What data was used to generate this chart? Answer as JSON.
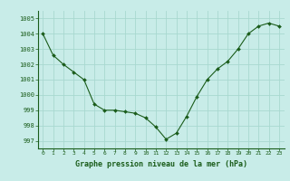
{
  "x": [
    0,
    1,
    2,
    3,
    4,
    5,
    6,
    7,
    8,
    9,
    10,
    11,
    12,
    13,
    14,
    15,
    16,
    17,
    18,
    19,
    20,
    21,
    22,
    23
  ],
  "y": [
    1004.0,
    1002.6,
    1002.0,
    1001.5,
    1001.0,
    999.4,
    999.0,
    999.0,
    998.9,
    998.8,
    998.5,
    997.9,
    997.1,
    997.5,
    998.6,
    999.9,
    1001.0,
    1001.7,
    1002.2,
    1003.0,
    1004.0,
    1004.5,
    1004.7,
    1004.5
  ],
  "bg_color": "#c8ece8",
  "grid_color": "#a8d8d0",
  "line_color": "#1a5c1a",
  "marker_color": "#1a5c1a",
  "xlabel": "Graphe pression niveau de la mer (hPa)",
  "xlabel_color": "#1a5c1a",
  "tick_color": "#1a5c1a",
  "axis_color": "#1a5c1a",
  "ylim": [
    996.5,
    1005.5
  ],
  "xlim": [
    -0.5,
    23.5
  ],
  "yticks": [
    997,
    998,
    999,
    1000,
    1001,
    1002,
    1003,
    1004,
    1005
  ],
  "xticks": [
    0,
    1,
    2,
    3,
    4,
    5,
    6,
    7,
    8,
    9,
    10,
    11,
    12,
    13,
    14,
    15,
    16,
    17,
    18,
    19,
    20,
    21,
    22,
    23
  ]
}
